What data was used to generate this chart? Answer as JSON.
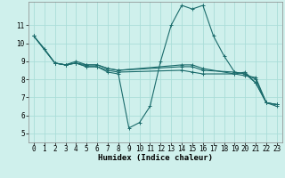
{
  "title": "",
  "xlabel": "Humidex (Indice chaleur)",
  "ylabel": "",
  "bg_color": "#cff0ec",
  "line_color": "#1a6b6b",
  "grid_color": "#aaddd8",
  "xlim": [
    -0.5,
    23.5
  ],
  "ylim": [
    4.5,
    12.3
  ],
  "xticks": [
    0,
    1,
    2,
    3,
    4,
    5,
    6,
    7,
    8,
    9,
    10,
    11,
    12,
    13,
    14,
    15,
    16,
    17,
    18,
    19,
    20,
    21,
    22,
    23
  ],
  "yticks": [
    5,
    6,
    7,
    8,
    9,
    10,
    11
  ],
  "series": [
    {
      "x": [
        0,
        1,
        2,
        3,
        4,
        5,
        6,
        7,
        8,
        9,
        10,
        11,
        12,
        13,
        14,
        15,
        16,
        17,
        18,
        19,
        20,
        21,
        22,
        23
      ],
      "y": [
        10.4,
        9.7,
        8.9,
        8.8,
        8.9,
        8.7,
        8.7,
        8.4,
        8.3,
        5.3,
        5.6,
        6.5,
        9.0,
        11.0,
        12.1,
        11.9,
        12.1,
        10.4,
        9.3,
        8.4,
        8.3,
        7.8,
        6.7,
        6.6
      ]
    },
    {
      "x": [
        0,
        2,
        3,
        4,
        5,
        6,
        7,
        8,
        14,
        15,
        16,
        19,
        20,
        21,
        22,
        23
      ],
      "y": [
        10.4,
        8.9,
        8.8,
        8.9,
        8.7,
        8.7,
        8.5,
        8.4,
        8.5,
        8.4,
        8.3,
        8.3,
        8.2,
        8.1,
        6.7,
        6.6
      ]
    },
    {
      "x": [
        0,
        2,
        3,
        4,
        5,
        6,
        7,
        8,
        14,
        15,
        16,
        19,
        20,
        21,
        22,
        23
      ],
      "y": [
        10.4,
        8.9,
        8.8,
        9.0,
        8.8,
        8.8,
        8.6,
        8.5,
        8.7,
        8.7,
        8.5,
        8.4,
        8.3,
        8.0,
        6.7,
        6.5
      ]
    },
    {
      "x": [
        2,
        3,
        4,
        5,
        6,
        7,
        8,
        14,
        15,
        16,
        19,
        20,
        21,
        22,
        23
      ],
      "y": [
        8.9,
        8.8,
        8.9,
        8.8,
        8.8,
        8.6,
        8.5,
        8.8,
        8.8,
        8.6,
        8.3,
        8.4,
        7.8,
        6.7,
        6.6
      ]
    }
  ],
  "marker": "+",
  "markersize": 3,
  "linewidth": 0.8,
  "tick_fontsize": 5.5,
  "xlabel_fontsize": 6.5
}
